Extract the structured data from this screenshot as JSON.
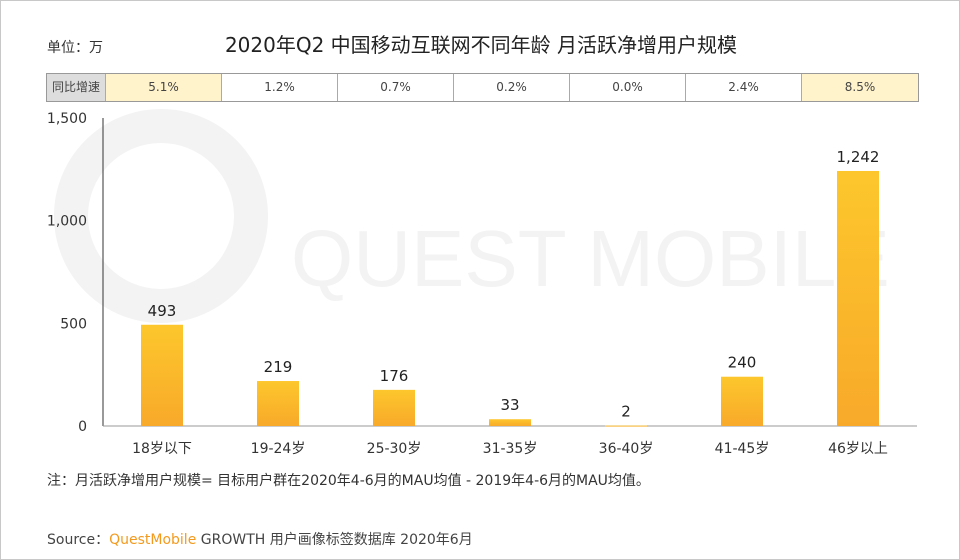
{
  "unit_label": "单位：万",
  "chart_data": {
    "type": "bar",
    "title": "2020年Q2 中国移动互联网不同年龄 月活跃净增用户规模",
    "categories": [
      "18岁以下",
      "19-24岁",
      "25-30岁",
      "31-35岁",
      "36-40岁",
      "41-45岁",
      "46岁以上"
    ],
    "values": [
      493,
      219,
      176,
      33,
      2,
      240,
      1242
    ],
    "data_labels": [
      "493",
      "219",
      "176",
      "33",
      "2",
      "240",
      "1,242"
    ],
    "ylim": [
      0,
      1500
    ],
    "yticks": [
      0,
      500,
      1000,
      1500
    ],
    "ytick_labels": [
      "0",
      "500",
      "1,000",
      "1,500"
    ],
    "grid": false,
    "bar_color": "#fbb829",
    "yoy_header": "同比增速",
    "yoy": [
      "5.1%",
      "1.2%",
      "0.7%",
      "0.2%",
      "0.0%",
      "2.4%",
      "8.5%"
    ],
    "yoy_highlight_color": "#fff3cc"
  },
  "watermark": "QUEST MOBILE",
  "note": "注：月活跃净增用户规模= 目标用户群在2020年4-6月的MAU均值 - 2019年4-6月的MAU均值。",
  "source": {
    "prefix": "Source：",
    "brand": "QuestMobile",
    "rest": " GROWTH 用户画像标签数据库 2020年6月"
  }
}
